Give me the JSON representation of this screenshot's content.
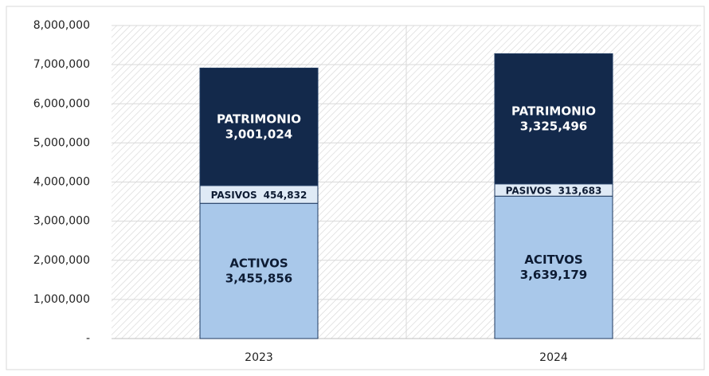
{
  "chart_data": {
    "type": "stacked_bar",
    "categories": [
      "2023",
      "2024"
    ],
    "series": [
      {
        "labels": [
          "ACTIVOS",
          "ACITVOS"
        ],
        "color": "#a9c8ea",
        "text_color": "#0d1b33",
        "values": [
          3455856,
          3639179
        ],
        "value_labels": [
          "3,455,856",
          "3,639,179"
        ],
        "label_style": "two-line"
      },
      {
        "labels": [
          "PASIVOS",
          "PASIVOS"
        ],
        "color": "#dfeaf6",
        "text_color": "#0d1b33",
        "values": [
          454832,
          313683
        ],
        "value_labels": [
          "454,832",
          "313,683"
        ],
        "label_style": "one-line"
      },
      {
        "labels": [
          "PATRIMONIO",
          "PATRIMONIO"
        ],
        "color": "#13294b",
        "text_color": "#ffffff",
        "values": [
          3001024,
          3325496
        ],
        "value_labels": [
          "3,001,024",
          "3,325,496"
        ],
        "label_style": "two-line"
      }
    ],
    "ylim": [
      0,
      8000000
    ],
    "yticks": [
      {
        "value": 0,
        "label": "-"
      },
      {
        "value": 1000000,
        "label": "1,000,000"
      },
      {
        "value": 2000000,
        "label": "2,000,000"
      },
      {
        "value": 3000000,
        "label": "3,000,000"
      },
      {
        "value": 4000000,
        "label": "4,000,000"
      },
      {
        "value": 5000000,
        "label": "5,000,000"
      },
      {
        "value": 6000000,
        "label": "6,000,000"
      },
      {
        "value": 7000000,
        "label": "7,000,000"
      },
      {
        "value": 8000000,
        "label": "8,000,000"
      }
    ],
    "grid": true
  }
}
